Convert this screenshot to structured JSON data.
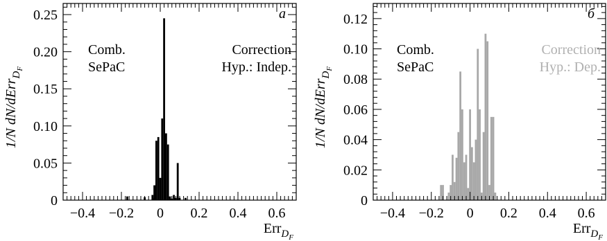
{
  "chart_data": [
    {
      "type": "bar",
      "panel_letter": "а",
      "xlabel": "Err",
      "xlabel_sub": "D",
      "xlabel_sub2": "F",
      "ylabel": "1/N dN/dErr",
      "ylabel_sub": "D",
      "ylabel_sub2": "F",
      "xlim": [
        -0.5,
        0.7
      ],
      "ylim": [
        0,
        0.265
      ],
      "x_ticks": [
        -0.4,
        -0.2,
        0,
        0.2,
        0.4,
        0.6
      ],
      "x_tick_labels": [
        "−0.4",
        "−0.2",
        "0",
        "0.2",
        "0.4",
        "0.6"
      ],
      "y_ticks": [
        0,
        0.05,
        0.1,
        0.15,
        0.2,
        0.25
      ],
      "y_tick_labels": [
        "0",
        "0.05",
        "0.10",
        "0.15",
        "0.20",
        "0.25"
      ],
      "bar_color": "#000000",
      "annotations": [
        {
          "lines": [
            "Comb.",
            "SePaC"
          ],
          "color": "#000000"
        },
        {
          "lines": [
            "Correction",
            "Hyp.: Indep."
          ],
          "color": "#000000"
        }
      ],
      "bin_width": 0.01,
      "bins": [
        {
          "x": -0.17,
          "y": 0.005
        },
        {
          "x": -0.08,
          "y": 0.004
        },
        {
          "x": -0.03,
          "y": 0.003
        },
        {
          "x": -0.04,
          "y": 0.007
        },
        {
          "x": -0.03,
          "y": 0.02
        },
        {
          "x": -0.02,
          "y": 0.08
        },
        {
          "x": -0.01,
          "y": 0.085
        },
        {
          "x": 0.0,
          "y": 0.03
        },
        {
          "x": 0.01,
          "y": 0.11
        },
        {
          "x": 0.02,
          "y": 0.245
        },
        {
          "x": 0.03,
          "y": 0.09
        },
        {
          "x": 0.04,
          "y": 0.075
        },
        {
          "x": 0.05,
          "y": 0.005
        },
        {
          "x": 0.06,
          "y": 0.002
        },
        {
          "x": 0.07,
          "y": 0.007
        },
        {
          "x": 0.08,
          "y": 0.003
        },
        {
          "x": 0.09,
          "y": 0.05
        },
        {
          "x": 0.1,
          "y": 0.003
        },
        {
          "x": 0.13,
          "y": 0.003
        }
      ]
    },
    {
      "type": "bar",
      "panel_letter": "б",
      "xlabel": "Err",
      "xlabel_sub": "D",
      "xlabel_sub2": "F",
      "ylabel": "1/N dN/dErr",
      "ylabel_sub": "D",
      "ylabel_sub2": "F",
      "xlim": [
        -0.5,
        0.7
      ],
      "ylim": [
        0,
        0.13
      ],
      "x_ticks": [
        -0.4,
        -0.2,
        0,
        0.2,
        0.4,
        0.6
      ],
      "x_tick_labels": [
        "−0.4",
        "−0.2",
        "0",
        "0.2",
        "0.4",
        "0.6"
      ],
      "y_ticks": [
        0,
        0.02,
        0.04,
        0.06,
        0.08,
        0.1,
        0.12
      ],
      "y_tick_labels": [
        "0",
        "0.02",
        "0.04",
        "0.06",
        "0.08",
        "0.10",
        "0.12"
      ],
      "bar_color": "#a8a8a8",
      "annotations": [
        {
          "lines": [
            "Comb.",
            "SePaC"
          ],
          "color": "#000000"
        },
        {
          "lines": [
            "Correction",
            "Hyp.: Dep."
          ],
          "color": "#b0b0b0"
        }
      ],
      "bin_width": 0.01,
      "bins": [
        {
          "x": -0.15,
          "y": 0.01
        },
        {
          "x": -0.14,
          "y": 0.01
        },
        {
          "x": -0.11,
          "y": 0.005
        },
        {
          "x": -0.1,
          "y": 0.01
        },
        {
          "x": -0.09,
          "y": 0.03
        },
        {
          "x": -0.08,
          "y": 0.012
        },
        {
          "x": -0.07,
          "y": 0.028
        },
        {
          "x": -0.06,
          "y": 0.045
        },
        {
          "x": -0.05,
          "y": 0.085
        },
        {
          "x": -0.04,
          "y": 0.06
        },
        {
          "x": -0.03,
          "y": 0.025
        },
        {
          "x": -0.02,
          "y": 0.03
        },
        {
          "x": -0.01,
          "y": 0.008
        },
        {
          "x": 0.0,
          "y": 0.06
        },
        {
          "x": 0.01,
          "y": 0.035
        },
        {
          "x": 0.02,
          "y": 0.025
        },
        {
          "x": 0.03,
          "y": 0.04
        },
        {
          "x": 0.04,
          "y": 0.1
        },
        {
          "x": 0.05,
          "y": 0.06
        },
        {
          "x": 0.06,
          "y": 0.005
        },
        {
          "x": 0.07,
          "y": 0.045
        },
        {
          "x": 0.08,
          "y": 0.11
        },
        {
          "x": 0.09,
          "y": 0.105
        },
        {
          "x": 0.1,
          "y": 0.01
        },
        {
          "x": 0.11,
          "y": 0.055
        },
        {
          "x": 0.12,
          "y": 0.055
        },
        {
          "x": 0.13,
          "y": 0.005
        }
      ]
    }
  ]
}
